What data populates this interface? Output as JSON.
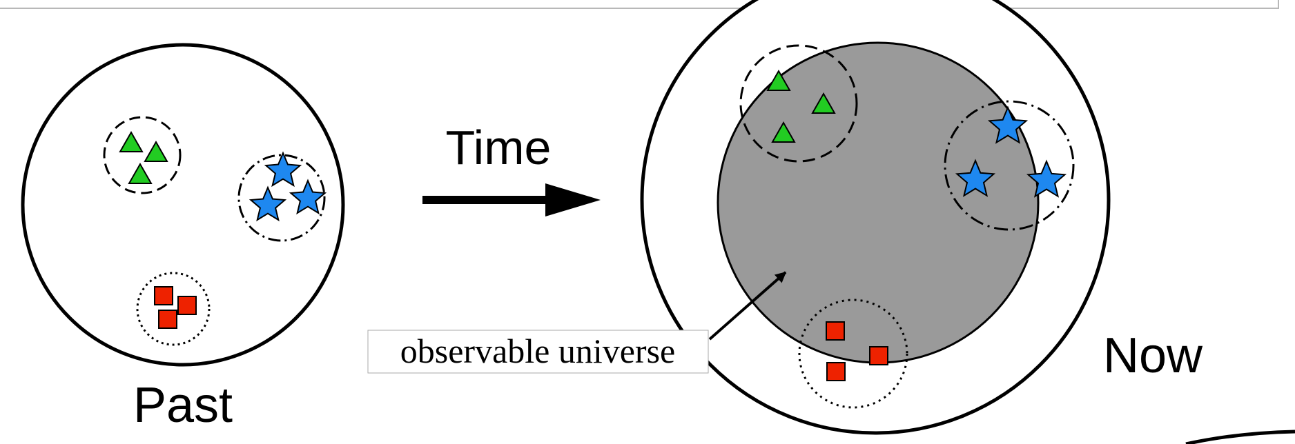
{
  "labels": {
    "time": "Time",
    "past": "Past",
    "now": "Now",
    "observable_universe": "observable universe"
  },
  "colors": {
    "triangle": "#22cc22",
    "star": "#1e88f0",
    "square": "#ee2200",
    "observable_region": "#9a9a9a",
    "outline": "#000000"
  },
  "shapes": {
    "cluster_a": "triangle",
    "cluster_b": "star",
    "cluster_c": "square"
  }
}
